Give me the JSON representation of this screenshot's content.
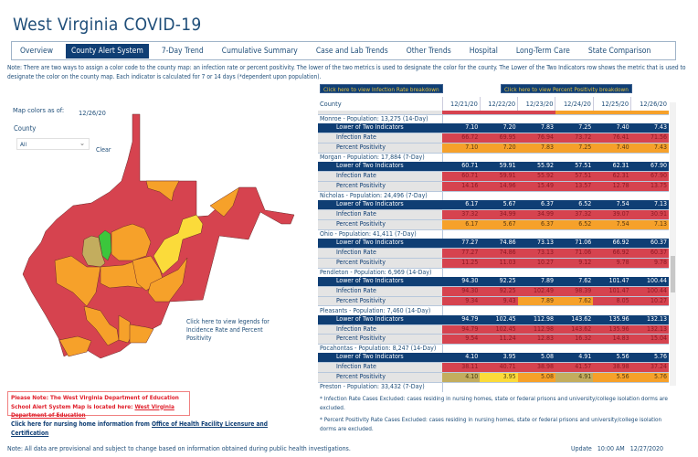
{
  "title": "West Virginia COVID-19",
  "nav": [
    "Overview",
    "County Alert System",
    "7-Day Trend",
    "Cumulative Summary",
    "Case and Lab Trends",
    "Other Trends",
    "Hospital",
    "Long-Term Care",
    "State Comparison"
  ],
  "nav_active": "County Alert System",
  "note": "Note: There are two ways to assign a color code to the county map: an infection rate or percent positivity. The lower of the two metrics is used to designate the color for the county. The Lower of the Two Indicators row shows the metric that is used to designate the color on the county map. Each indicator is calculated for 7 or 14 days (*dependent upon population).",
  "buttons": {
    "infection": "Click here to view Infection Rate breakdown",
    "positivity": "Click here to view Percent Positivity breakdown"
  },
  "map": {
    "colors_as_of_label": "Map colors as of:",
    "date": "12/26/20",
    "county_label": "County",
    "county_value": "All",
    "clear": "Clear",
    "legend_link": "Click here to view legends for Incidence Rate and Percent Positivity"
  },
  "colors": {
    "navy": "#0f3e74",
    "red": "#d6434f",
    "orange": "#f6a12a",
    "yellow": "#fbdb3a",
    "khaki": "#c3ad5e",
    "green": "#3cc63c"
  },
  "table": {
    "headers": [
      "County",
      "12/21/20",
      "12/22/20",
      "12/23/20",
      "12/24/20",
      "12/25/20",
      "12/26/20"
    ],
    "row_labels": {
      "low": "Lower of Two Indicators",
      "ir": "Infection Rate",
      "pp": "Percent Positivity"
    },
    "counties": [
      {
        "name": "Monroe - Population: 13,275 (14-Day)",
        "low": [
          "7.10",
          "7.20",
          "7.83",
          "7.25",
          "7.40",
          "7.43"
        ],
        "ir": [
          "66.72",
          "69.95",
          "76.94",
          "73.72",
          "76.41",
          "71.56"
        ],
        "ir_c": [
          "r",
          "r",
          "r",
          "r",
          "r",
          "r"
        ],
        "pp": [
          "7.10",
          "7.20",
          "7.83",
          "7.25",
          "7.40",
          "7.43"
        ],
        "pp_c": [
          "o",
          "o",
          "o",
          "o",
          "o",
          "o"
        ]
      },
      {
        "name": "Morgan - Population: 17,884 (7-Day)",
        "low": [
          "60.71",
          "59.91",
          "55.92",
          "57.51",
          "62.31",
          "67.90"
        ],
        "ir": [
          "60.71",
          "59.91",
          "55.92",
          "57.51",
          "62.31",
          "67.90"
        ],
        "ir_c": [
          "r",
          "r",
          "r",
          "r",
          "r",
          "r"
        ],
        "pp": [
          "14.16",
          "14.96",
          "15.49",
          "13.57",
          "12.78",
          "13.75"
        ],
        "pp_c": [
          "r",
          "r",
          "r",
          "r",
          "r",
          "r"
        ]
      },
      {
        "name": "Nicholas - Population: 24,496 (7-Day)",
        "low": [
          "6.17",
          "5.67",
          "6.37",
          "6.52",
          "7.54",
          "7.13"
        ],
        "ir": [
          "37.32",
          "34.99",
          "34.99",
          "37.32",
          "39.07",
          "30.91"
        ],
        "ir_c": [
          "r",
          "r",
          "r",
          "r",
          "r",
          "r"
        ],
        "pp": [
          "6.17",
          "5.67",
          "6.37",
          "6.52",
          "7.54",
          "7.13"
        ],
        "pp_c": [
          "o",
          "o",
          "o",
          "o",
          "o",
          "o"
        ]
      },
      {
        "name": "Ohio - Population: 41,411 (7-Day)",
        "low": [
          "77.27",
          "74.86",
          "73.13",
          "71.06",
          "66.92",
          "60.37"
        ],
        "ir": [
          "77.27",
          "74.86",
          "73.13",
          "71.06",
          "66.92",
          "60.37"
        ],
        "ir_c": [
          "r",
          "r",
          "r",
          "r",
          "r",
          "r"
        ],
        "pp": [
          "11.25",
          "11.03",
          "10.27",
          "9.12",
          "9.78",
          "9.78"
        ],
        "pp_c": [
          "r",
          "r",
          "r",
          "r",
          "r",
          "r"
        ]
      },
      {
        "name": "Pendleton - Population: 6,969 (14-Day)",
        "low": [
          "94.30",
          "92.25",
          "7.89",
          "7.62",
          "101.47",
          "100.44"
        ],
        "ir": [
          "94.30",
          "92.25",
          "102.49",
          "98.39",
          "101.47",
          "100.44"
        ],
        "ir_c": [
          "r",
          "r",
          "r",
          "r",
          "r",
          "r"
        ],
        "pp": [
          "9.34",
          "9.43",
          "7.89",
          "7.62",
          "8.05",
          "10.27"
        ],
        "pp_c": [
          "r",
          "r",
          "o",
          "o",
          "r",
          "r"
        ]
      },
      {
        "name": "Pleasants - Population: 7,460 (14-Day)",
        "low": [
          "94.79",
          "102.45",
          "112.98",
          "143.62",
          "135.96",
          "132.13"
        ],
        "ir": [
          "94.79",
          "102.45",
          "112.98",
          "143.62",
          "135.96",
          "132.13"
        ],
        "ir_c": [
          "r",
          "r",
          "r",
          "r",
          "r",
          "r"
        ],
        "pp": [
          "9.54",
          "11.24",
          "12.83",
          "16.32",
          "14.83",
          "15.04"
        ],
        "pp_c": [
          "r",
          "r",
          "r",
          "r",
          "r",
          "r"
        ]
      },
      {
        "name": "Pocahontas - Population: 8,247 (14-Day)",
        "low": [
          "4.10",
          "3.95",
          "5.08",
          "4.91",
          "5.56",
          "5.76"
        ],
        "ir": [
          "38.11",
          "40.71",
          "38.98",
          "41.57",
          "38.98",
          "37.24"
        ],
        "ir_c": [
          "r",
          "r",
          "r",
          "r",
          "r",
          "r"
        ],
        "pp": [
          "4.10",
          "3.95",
          "5.08",
          "4.91",
          "5.56",
          "5.76"
        ],
        "pp_c": [
          "k",
          "y",
          "o",
          "k",
          "o",
          "o"
        ]
      },
      {
        "name": "Preston - Population: 33,432 (7-Day)"
      }
    ]
  },
  "education_note": {
    "text": "Please Note: The West Virginia Department of Education School Alert System Map is located here: ",
    "link": "West Virginia Department of Education"
  },
  "nursing": {
    "text": "Click here for nursing home information from ",
    "link": "Office of Health Facility Licensure and Certification"
  },
  "footnote_ir": "* Infection Rate Cases Excluded: cases residing in nursing homes, state or federal prisons and university/college isolation dorms are excluded.",
  "footnote_pp": "* Percent Positivity Rate Cases Excluded: cases residing in nursing homes, state or federal prisons and university/college isolation dorms are excluded.",
  "provisional": "Note: All data are provisional and subject to change based on information obtained during public health investigations.",
  "updated": {
    "label": "Update",
    "time": "10:00 AM",
    "date": "12/27/2020"
  }
}
